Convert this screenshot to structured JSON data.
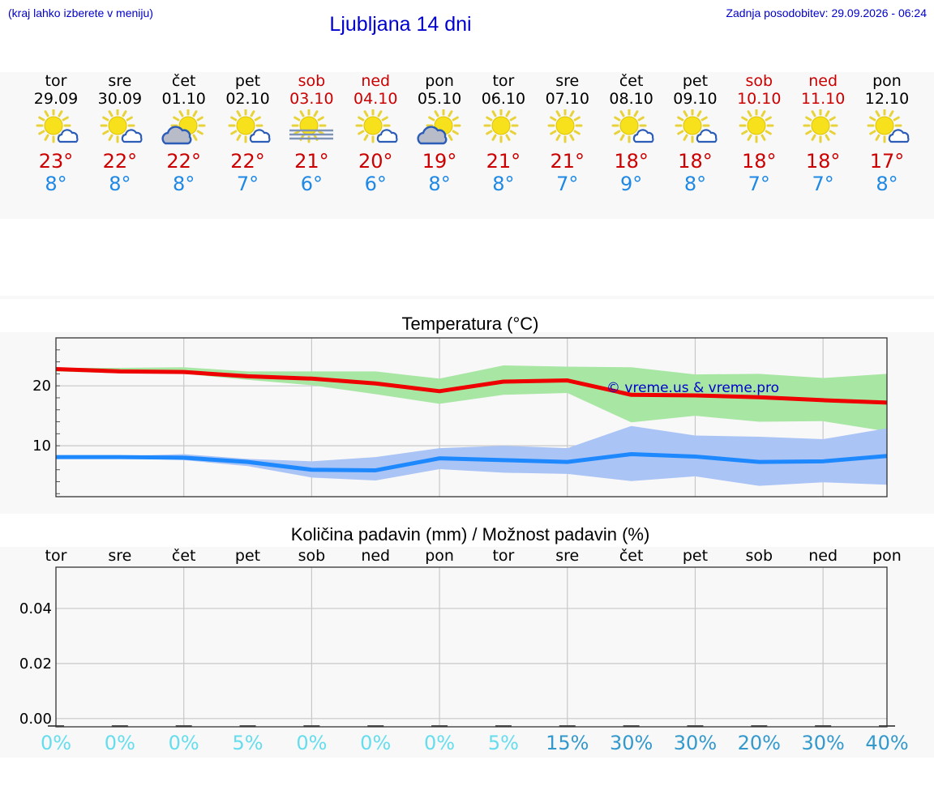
{
  "header": {
    "note": "(kraj lahko izberete v meniju)",
    "title": "Ljubljana 14 dni",
    "last_update": "Zadnja posodobitev: 29.09.2026 - 06:24"
  },
  "days": [
    {
      "name": "tor",
      "date": "29.09",
      "icon": "sun-cloud-icon",
      "max": "23°",
      "min": "8°",
      "weekend": false
    },
    {
      "name": "sre",
      "date": "30.09",
      "icon": "sun-cloud-icon",
      "max": "22°",
      "min": "8°",
      "weekend": false
    },
    {
      "name": "čet",
      "date": "01.10",
      "icon": "sun-behind-cloud-icon",
      "max": "22°",
      "min": "8°",
      "weekend": false
    },
    {
      "name": "pet",
      "date": "02.10",
      "icon": "sun-cloud-icon",
      "max": "22°",
      "min": "7°",
      "weekend": false
    },
    {
      "name": "sob",
      "date": "03.10",
      "icon": "sun-fog-icon",
      "max": "21°",
      "min": "6°",
      "weekend": true
    },
    {
      "name": "ned",
      "date": "04.10",
      "icon": "sun-cloud-icon",
      "max": "20°",
      "min": "6°",
      "weekend": true
    },
    {
      "name": "pon",
      "date": "05.10",
      "icon": "sun-behind-cloud-icon",
      "max": "19°",
      "min": "8°",
      "weekend": false
    },
    {
      "name": "tor",
      "date": "06.10",
      "icon": "sun-icon",
      "max": "21°",
      "min": "8°",
      "weekend": false
    },
    {
      "name": "sre",
      "date": "07.10",
      "icon": "sun-icon",
      "max": "21°",
      "min": "7°",
      "weekend": false
    },
    {
      "name": "čet",
      "date": "08.10",
      "icon": "sun-cloud-icon",
      "max": "18°",
      "min": "9°",
      "weekend": false
    },
    {
      "name": "pet",
      "date": "09.10",
      "icon": "sun-cloud-icon",
      "max": "18°",
      "min": "8°",
      "weekend": false
    },
    {
      "name": "sob",
      "date": "10.10",
      "icon": "sun-icon",
      "max": "18°",
      "min": "7°",
      "weekend": true
    },
    {
      "name": "ned",
      "date": "11.10",
      "icon": "sun-icon",
      "max": "18°",
      "min": "7°",
      "weekend": true
    },
    {
      "name": "pon",
      "date": "12.10",
      "icon": "sun-cloud-icon",
      "max": "17°",
      "min": "8°",
      "weekend": false
    }
  ],
  "colors": {
    "max_line": "#ee0000",
    "max_band": "#a8e6a3",
    "min_line": "#1e88ff",
    "min_band": "#aac4f5",
    "prob_low": "#66ddee",
    "prob_high": "#3399cc",
    "watermark": "#0000cc"
  },
  "chart_data": [
    {
      "type": "line",
      "title": "Temperatura (°C)",
      "watermark": "© vreme.us & vreme.pro",
      "categories": [
        "29.09",
        "30.09",
        "01.10",
        "02.10",
        "03.10",
        "04.10",
        "05.10",
        "06.10",
        "07.10",
        "08.10",
        "09.10",
        "10.10",
        "11.10",
        "12.10"
      ],
      "ylim": [
        1.5,
        28
      ],
      "yticks": [
        10,
        20
      ],
      "grid": true,
      "series": [
        {
          "role": "max",
          "values": [
            22.8,
            22.4,
            22.3,
            21.6,
            21.2,
            20.4,
            19.1,
            20.7,
            20.9,
            18.5,
            18.4,
            18.1,
            17.6,
            17.2
          ],
          "band_low": [
            22.4,
            22.1,
            22.0,
            21.0,
            20.1,
            18.6,
            17.0,
            18.5,
            18.8,
            13.9,
            15.0,
            14.0,
            14.1,
            12.4
          ],
          "band_high": [
            23.0,
            23.0,
            23.1,
            22.4,
            22.4,
            22.4,
            21.2,
            23.4,
            23.2,
            23.1,
            21.9,
            22.0,
            21.3,
            22.0
          ]
        },
        {
          "role": "min",
          "values": [
            8.1,
            8.1,
            8.0,
            7.3,
            6.0,
            5.9,
            7.9,
            7.6,
            7.3,
            8.6,
            8.2,
            7.3,
            7.4,
            8.3
          ],
          "band_low": [
            7.9,
            7.9,
            7.6,
            6.6,
            4.7,
            4.2,
            6.1,
            5.5,
            5.3,
            4.1,
            4.9,
            3.3,
            3.9,
            3.5
          ],
          "band_high": [
            8.2,
            8.3,
            8.6,
            7.8,
            7.4,
            8.1,
            9.6,
            10.0,
            9.6,
            13.3,
            11.7,
            11.5,
            11.1,
            12.9
          ]
        }
      ]
    },
    {
      "type": "bar",
      "title": "Količina padavin (mm) / Možnost padavin (%)",
      "categories": [
        "tor",
        "sre",
        "čet",
        "pet",
        "sob",
        "ned",
        "pon",
        "tor",
        "sre",
        "čet",
        "pet",
        "sob",
        "ned",
        "pon"
      ],
      "ylim": [
        -0.003,
        0.055
      ],
      "yticks": [
        "0.00",
        "0.02",
        "0.04"
      ],
      "grid": true,
      "values": [
        0,
        0,
        0,
        0,
        0,
        0,
        0,
        0,
        0,
        0,
        0,
        0,
        0,
        0
      ],
      "probability": [
        "0%",
        "0%",
        "0%",
        "5%",
        "0%",
        "0%",
        "0%",
        "5%",
        "15%",
        "30%",
        "30%",
        "20%",
        "30%",
        "40%"
      ]
    }
  ]
}
